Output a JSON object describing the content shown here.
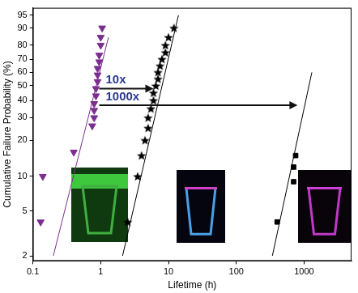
{
  "chart_data": {
    "type": "scatter",
    "x_label": "Lifetime (h)",
    "y_label": "Cumulative Failure Probability (%)",
    "log": "x",
    "grid": false,
    "xlim": [
      0.1,
      5000
    ],
    "xticks": [
      0.1,
      1,
      10,
      100,
      1000
    ],
    "ylim": [
      1.8,
      97
    ],
    "yticks": [
      2,
      5,
      10,
      20,
      30,
      40,
      50,
      60,
      70,
      80,
      90,
      95
    ],
    "series": [
      {
        "type": "scatter",
        "color": "#7a2e8e",
        "marker": "triangle_down",
        "x": [
          0.13,
          0.14,
          0.4,
          0.75,
          0.8,
          0.8,
          0.8,
          0.85,
          0.85,
          0.9,
          0.9,
          0.9,
          0.95,
          0.95,
          1.0,
          1.0,
          1.05
        ],
        "values": [
          4,
          10,
          16,
          26,
          30,
          34,
          38,
          43,
          48,
          53,
          58,
          63,
          68,
          73,
          80,
          85,
          90
        ]
      },
      {
        "type": "line",
        "color": "#7a2e8e",
        "line_style": "solid",
        "marker": "none",
        "x": [
          0.2,
          1.3
        ],
        "values": [
          2,
          85
        ]
      },
      {
        "type": "scatter",
        "color": "#000000",
        "marker": "star",
        "x": [
          2.5,
          3.5,
          4,
          4.5,
          5,
          5,
          5.5,
          6,
          6,
          6.5,
          7,
          7,
          7.5,
          8,
          9,
          9,
          10,
          12
        ],
        "values": [
          4,
          10,
          15,
          20,
          25,
          30,
          35,
          40,
          45,
          50,
          55,
          60,
          65,
          70,
          75,
          80,
          85,
          90
        ]
      },
      {
        "type": "line",
        "color": "#000000",
        "line_style": "solid",
        "marker": "none",
        "x": [
          2.1,
          14
        ],
        "values": [
          2,
          95
        ]
      },
      {
        "type": "scatter",
        "color": "#000000",
        "marker": "square",
        "x": [
          400,
          700,
          700,
          750
        ],
        "values": [
          4,
          9,
          12,
          15
        ]
      },
      {
        "type": "line",
        "color": "#000000",
        "line_style": "solid",
        "marker": "none",
        "x": [
          340,
          1300
        ],
        "values": [
          2,
          60
        ]
      }
    ],
    "annotations": [
      {
        "text": "10x",
        "from": [
          0.95,
          48
        ],
        "to": [
          6,
          48
        ]
      },
      {
        "text": "1000x",
        "from": [
          0.95,
          37
        ],
        "to": [
          800,
          37
        ]
      }
    ]
  }
}
